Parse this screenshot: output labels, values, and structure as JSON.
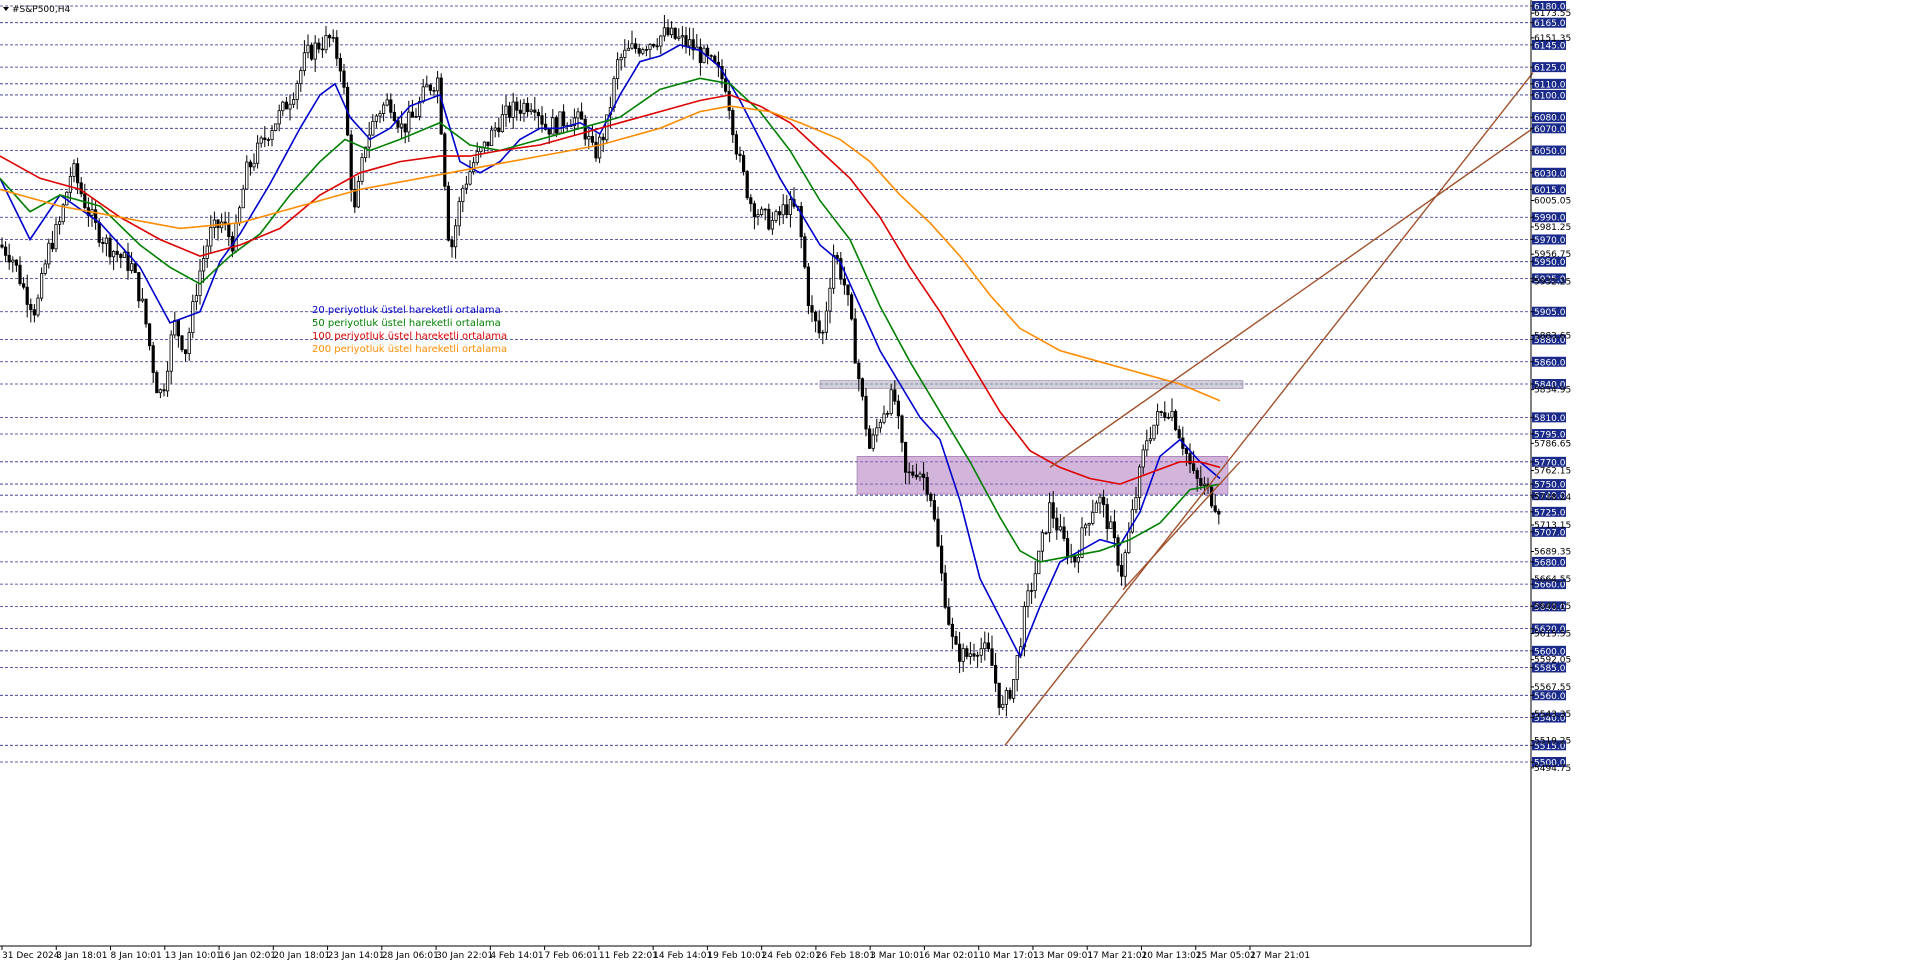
{
  "chart_data": {
    "type": "candlestick",
    "symbol_label": "#S&P500,H4",
    "ylim": [
      5490,
      6182
    ],
    "x_tick_labels": [
      "31 Dec 2024",
      "3 Jan 18:01",
      "8 Jan 10:01",
      "13 Jan 10:01",
      "16 Jan 02:01",
      "20 Jan 18:01",
      "23 Jan 14:01",
      "28 Jan 06:01",
      "30 Jan 22:01",
      "4 Feb 14:01",
      "7 Feb 06:01",
      "11 Feb 22:01",
      "14 Feb 14:01",
      "19 Feb 10:01",
      "24 Feb 02:01",
      "26 Feb 18:01",
      "3 Mar 10:01",
      "6 Mar 02:01",
      "10 Mar 17:01",
      "13 Mar 09:01",
      "17 Mar 21:01",
      "20 Mar 13:01",
      "25 Mar 05:01",
      "27 Mar 21:01"
    ],
    "boxed_levels": [
      "6180.00",
      "6165.00",
      "6145.00",
      "6125.00",
      "6110.00",
      "6100.00",
      "6080.00",
      "6070.00",
      "6050.00",
      "6030.00",
      "6015.00",
      "5990.00",
      "5970.00",
      "5950.00",
      "5935.00",
      "5905.00",
      "5880.00",
      "5860.00",
      "5840.00",
      "5810.00",
      "5795.00",
      "5770.00",
      "5750.00",
      "5740.00",
      "5725.00",
      "5707.00",
      "5680.00",
      "5660.00",
      "5640.00",
      "5620.00",
      "5600.00",
      "5585.00",
      "5560.00",
      "5540.00",
      "5515.00",
      "5500.00"
    ],
    "scale_labels": [
      "6173.55",
      "6151.35",
      "6005.05",
      "5981.25",
      "5956.75",
      "5932.25",
      "5883.65",
      "5834.95",
      "5786.65",
      "5762.15",
      "5738.24",
      "5713.15",
      "5689.35",
      "5664.55",
      "5640.15",
      "5615.55",
      "5592.05",
      "5567.55",
      "5543.35",
      "5519.25",
      "5494.75"
    ],
    "legend": [
      {
        "label": "20 periyotluk üstel hareketli ortalama",
        "color": "#0000cc"
      },
      {
        "label": "50 periyotluk üstel hareketli ortalama",
        "color": "#008000"
      },
      {
        "label": "100 periyotluk üstel hareketli ortalama",
        "color": "#dd0000"
      },
      {
        "label": "200 periyotluk üstel hareketli ortalama",
        "color": "#ff8c00"
      }
    ],
    "ma_series": [
      {
        "period": 20,
        "color": "#0000cc",
        "values": [
          [
            0,
            6025
          ],
          [
            30,
            5970
          ],
          [
            60,
            6010
          ],
          [
            100,
            5985
          ],
          [
            140,
            5945
          ],
          [
            170,
            5895
          ],
          [
            200,
            5905
          ],
          [
            220,
            5950
          ],
          [
            240,
            5975
          ],
          [
            270,
            6020
          ],
          [
            300,
            6070
          ],
          [
            320,
            6100
          ],
          [
            335,
            6110
          ],
          [
            350,
            6080
          ],
          [
            370,
            6060
          ],
          [
            390,
            6070
          ],
          [
            410,
            6090
          ],
          [
            440,
            6100
          ],
          [
            460,
            6040
          ],
          [
            480,
            6030
          ],
          [
            500,
            6040
          ],
          [
            520,
            6060
          ],
          [
            540,
            6070
          ],
          [
            560,
            6070
          ],
          [
            580,
            6075
          ],
          [
            600,
            6065
          ],
          [
            620,
            6100
          ],
          [
            640,
            6130
          ],
          [
            660,
            6135
          ],
          [
            680,
            6145
          ],
          [
            700,
            6140
          ],
          [
            720,
            6125
          ],
          [
            740,
            6095
          ],
          [
            760,
            6060
          ],
          [
            780,
            6025
          ],
          [
            800,
            5995
          ],
          [
            820,
            5965
          ],
          [
            840,
            5950
          ],
          [
            860,
            5910
          ],
          [
            880,
            5870
          ],
          [
            900,
            5840
          ],
          [
            920,
            5810
          ],
          [
            940,
            5790
          ],
          [
            960,
            5735
          ],
          [
            980,
            5665
          ],
          [
            1000,
            5630
          ],
          [
            1020,
            5595
          ],
          [
            1040,
            5640
          ],
          [
            1060,
            5680
          ],
          [
            1080,
            5690
          ],
          [
            1100,
            5700
          ],
          [
            1120,
            5695
          ],
          [
            1140,
            5725
          ],
          [
            1160,
            5775
          ],
          [
            1180,
            5790
          ],
          [
            1200,
            5770
          ],
          [
            1220,
            5755
          ]
        ]
      },
      {
        "period": 50,
        "color": "#008000",
        "values": [
          [
            0,
            6025
          ],
          [
            30,
            5995
          ],
          [
            60,
            6010
          ],
          [
            100,
            6000
          ],
          [
            140,
            5965
          ],
          [
            170,
            5945
          ],
          [
            200,
            5930
          ],
          [
            230,
            5955
          ],
          [
            260,
            5975
          ],
          [
            290,
            6010
          ],
          [
            320,
            6040
          ],
          [
            345,
            6060
          ],
          [
            370,
            6050
          ],
          [
            400,
            6060
          ],
          [
            440,
            6075
          ],
          [
            470,
            6055
          ],
          [
            500,
            6050
          ],
          [
            540,
            6060
          ],
          [
            580,
            6070
          ],
          [
            620,
            6080
          ],
          [
            660,
            6105
          ],
          [
            700,
            6115
          ],
          [
            730,
            6110
          ],
          [
            760,
            6085
          ],
          [
            790,
            6050
          ],
          [
            820,
            6005
          ],
          [
            850,
            5970
          ],
          [
            880,
            5910
          ],
          [
            910,
            5860
          ],
          [
            940,
            5815
          ],
          [
            970,
            5770
          ],
          [
            1000,
            5720
          ],
          [
            1020,
            5690
          ],
          [
            1040,
            5680
          ],
          [
            1070,
            5685
          ],
          [
            1100,
            5690
          ],
          [
            1130,
            5700
          ],
          [
            1160,
            5715
          ],
          [
            1190,
            5745
          ],
          [
            1220,
            5750
          ]
        ]
      },
      {
        "period": 100,
        "color": "#dd0000",
        "values": [
          [
            0,
            6045
          ],
          [
            40,
            6025
          ],
          [
            80,
            6015
          ],
          [
            120,
            5990
          ],
          [
            160,
            5970
          ],
          [
            200,
            5955
          ],
          [
            240,
            5965
          ],
          [
            280,
            5980
          ],
          [
            320,
            6010
          ],
          [
            360,
            6030
          ],
          [
            400,
            6040
          ],
          [
            440,
            6045
          ],
          [
            470,
            6045
          ],
          [
            500,
            6050
          ],
          [
            540,
            6055
          ],
          [
            580,
            6065
          ],
          [
            620,
            6075
          ],
          [
            660,
            6085
          ],
          [
            700,
            6095
          ],
          [
            730,
            6100
          ],
          [
            760,
            6090
          ],
          [
            790,
            6075
          ],
          [
            820,
            6050
          ],
          [
            850,
            6025
          ],
          [
            880,
            5990
          ],
          [
            910,
            5945
          ],
          [
            940,
            5905
          ],
          [
            970,
            5860
          ],
          [
            1000,
            5815
          ],
          [
            1030,
            5780
          ],
          [
            1060,
            5765
          ],
          [
            1090,
            5755
          ],
          [
            1120,
            5750
          ],
          [
            1150,
            5760
          ],
          [
            1180,
            5770
          ],
          [
            1200,
            5770
          ],
          [
            1220,
            5765
          ]
        ]
      },
      {
        "period": 200,
        "color": "#ff8c00",
        "values": [
          [
            0,
            6015
          ],
          [
            60,
            6000
          ],
          [
            120,
            5990
          ],
          [
            180,
            5980
          ],
          [
            240,
            5985
          ],
          [
            300,
            6000
          ],
          [
            360,
            6015
          ],
          [
            420,
            6025
          ],
          [
            480,
            6035
          ],
          [
            540,
            6045
          ],
          [
            600,
            6055
          ],
          [
            660,
            6070
          ],
          [
            700,
            6085
          ],
          [
            730,
            6090
          ],
          [
            770,
            6085
          ],
          [
            800,
            6075
          ],
          [
            840,
            6060
          ],
          [
            870,
            6040
          ],
          [
            900,
            6010
          ],
          [
            930,
            5985
          ],
          [
            960,
            5955
          ],
          [
            990,
            5920
          ],
          [
            1020,
            5890
          ],
          [
            1060,
            5870
          ],
          [
            1100,
            5860
          ],
          [
            1140,
            5850
          ],
          [
            1180,
            5840
          ],
          [
            1220,
            5825
          ]
        ]
      }
    ],
    "zones": [
      {
        "name": "upper-resistance-zone",
        "price_top": 5843,
        "price_bottom": 5836,
        "x_start": 820,
        "x_end": 1243
      },
      {
        "name": "consolidation-zone",
        "price_top": 5775,
        "price_bottom": 5741,
        "x_start": 857,
        "x_end": 1228
      }
    ],
    "trend_lines": [
      {
        "name": "channel-upper-line",
        "p1": [
          1050,
          5765
        ],
        "p2": [
          1533,
          6070
        ]
      },
      {
        "name": "channel-lower-line",
        "p1": [
          1005,
          5515
        ],
        "p2": [
          1533,
          6120
        ]
      },
      {
        "name": "channel-mid-line",
        "p1": [
          1123,
          5655
        ],
        "p2": [
          1240,
          5770
        ]
      }
    ],
    "price_path": [
      [
        0,
        5965
      ],
      [
        12,
        5955
      ],
      [
        24,
        5925
      ],
      [
        36,
        5905
      ],
      [
        48,
        5960
      ],
      [
        60,
        5985
      ],
      [
        72,
        6035
      ],
      [
        84,
        6005
      ],
      [
        96,
        5980
      ],
      [
        108,
        5965
      ],
      [
        120,
        5955
      ],
      [
        132,
        5945
      ],
      [
        144,
        5905
      ],
      [
        156,
        5840
      ],
      [
        162,
        5830
      ],
      [
        174,
        5895
      ],
      [
        186,
        5870
      ],
      [
        198,
        5935
      ],
      [
        210,
        5975
      ],
      [
        222,
        5985
      ],
      [
        234,
        5965
      ],
      [
        246,
        6030
      ],
      [
        258,
        6050
      ],
      [
        270,
        6070
      ],
      [
        282,
        6085
      ],
      [
        294,
        6105
      ],
      [
        306,
        6135
      ],
      [
        318,
        6145
      ],
      [
        330,
        6150
      ],
      [
        342,
        6125
      ],
      [
        354,
        5990
      ],
      [
        366,
        6060
      ],
      [
        378,
        6085
      ],
      [
        390,
        6095
      ],
      [
        402,
        6070
      ],
      [
        414,
        6080
      ],
      [
        426,
        6105
      ],
      [
        438,
        6115
      ],
      [
        450,
        5955
      ],
      [
        462,
        6015
      ],
      [
        474,
        6040
      ],
      [
        486,
        6055
      ],
      [
        498,
        6075
      ],
      [
        510,
        6085
      ],
      [
        522,
        6090
      ],
      [
        534,
        6095
      ],
      [
        546,
        6070
      ],
      [
        558,
        6075
      ],
      [
        570,
        6080
      ],
      [
        582,
        6075
      ],
      [
        594,
        6045
      ],
      [
        606,
        6070
      ],
      [
        618,
        6130
      ],
      [
        630,
        6140
      ],
      [
        642,
        6145
      ],
      [
        654,
        6150
      ],
      [
        666,
        6155
      ],
      [
        678,
        6150
      ],
      [
        690,
        6145
      ],
      [
        702,
        6135
      ],
      [
        714,
        6125
      ],
      [
        726,
        6110
      ],
      [
        738,
        6045
      ],
      [
        750,
        6005
      ],
      [
        762,
        5990
      ],
      [
        774,
        5985
      ],
      [
        786,
        6000
      ],
      [
        798,
        5995
      ],
      [
        810,
        5905
      ],
      [
        822,
        5880
      ],
      [
        834,
        5960
      ],
      [
        846,
        5925
      ],
      [
        858,
        5850
      ],
      [
        870,
        5780
      ],
      [
        882,
        5815
      ],
      [
        894,
        5830
      ],
      [
        906,
        5755
      ],
      [
        918,
        5765
      ],
      [
        930,
        5745
      ],
      [
        942,
        5665
      ],
      [
        954,
        5600
      ],
      [
        966,
        5595
      ],
      [
        978,
        5605
      ],
      [
        990,
        5595
      ],
      [
        1002,
        5545
      ],
      [
        1014,
        5575
      ],
      [
        1026,
        5640
      ],
      [
        1038,
        5680
      ],
      [
        1050,
        5730
      ],
      [
        1062,
        5700
      ],
      [
        1074,
        5680
      ],
      [
        1086,
        5715
      ],
      [
        1098,
        5740
      ],
      [
        1110,
        5710
      ],
      [
        1122,
        5670
      ],
      [
        1134,
        5730
      ],
      [
        1146,
        5790
      ],
      [
        1158,
        5810
      ],
      [
        1170,
        5820
      ],
      [
        1182,
        5790
      ],
      [
        1194,
        5755
      ],
      [
        1206,
        5745
      ],
      [
        1218,
        5730
      ]
    ]
  }
}
